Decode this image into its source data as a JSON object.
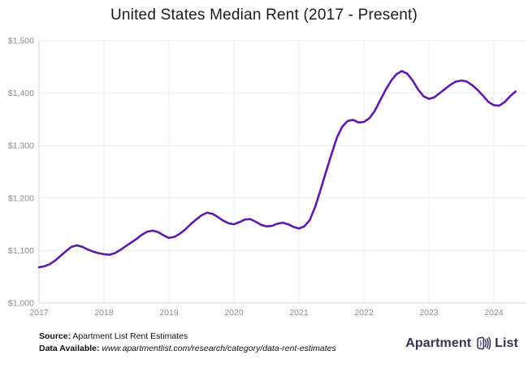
{
  "title": "United States Median Rent (2017 - Present)",
  "footer": {
    "source_label": "Source:",
    "source_text": " Apartment List Rent Estimates",
    "data_label": "Data Available:",
    "data_text": " www.apartmentlist.com/research/category/data-rent-estimates"
  },
  "logo": {
    "brand_first": "Apartment",
    "brand_second": "List",
    "icon": "apartment-list-door-icon"
  },
  "colors": {
    "line": "#5c1bab",
    "grid": "#ebebeb",
    "axis": "#d5d5d5",
    "tick_text": "#8c8c8c",
    "title_text": "#1b1b1b",
    "footer_text": "#111111",
    "logo_text": "#3a3153",
    "logo_purple": "#7b3ff2"
  },
  "chart_data": {
    "type": "line",
    "title": "United States Median Rent (2017 - Present)",
    "xlabel": "",
    "ylabel": "",
    "grid": true,
    "legend": false,
    "x_range": [
      2017,
      2024.5
    ],
    "y_range": [
      1000,
      1500
    ],
    "x_ticks": [
      {
        "v": 2017,
        "label": "2017"
      },
      {
        "v": 2018,
        "label": "2018"
      },
      {
        "v": 2019,
        "label": "2019"
      },
      {
        "v": 2020,
        "label": "2020"
      },
      {
        "v": 2021,
        "label": "2021"
      },
      {
        "v": 2022,
        "label": "2022"
      },
      {
        "v": 2023,
        "label": "2023"
      },
      {
        "v": 2024,
        "label": "2024"
      }
    ],
    "y_ticks": [
      {
        "v": 1000,
        "label": "$1,000"
      },
      {
        "v": 1100,
        "label": "$1,100"
      },
      {
        "v": 1200,
        "label": "$1,200"
      },
      {
        "v": 1300,
        "label": "$1,300"
      },
      {
        "v": 1400,
        "label": "$1,400"
      },
      {
        "v": 1500,
        "label": "$1,500"
      }
    ],
    "series": [
      {
        "name": "US Median Rent ($)",
        "x_start_year": 2017,
        "interval": "monthly",
        "values": [
          1068,
          1070,
          1074,
          1081,
          1090,
          1099,
          1107,
          1110,
          1107,
          1102,
          1098,
          1095,
          1093,
          1092,
          1095,
          1101,
          1108,
          1115,
          1122,
          1130,
          1136,
          1138,
          1135,
          1129,
          1124,
          1126,
          1132,
          1140,
          1150,
          1159,
          1167,
          1172,
          1170,
          1164,
          1157,
          1152,
          1150,
          1154,
          1159,
          1160,
          1155,
          1149,
          1146,
          1147,
          1151,
          1153,
          1150,
          1145,
          1142,
          1146,
          1158,
          1183,
          1216,
          1250,
          1283,
          1315,
          1336,
          1347,
          1349,
          1344,
          1345,
          1352,
          1366,
          1386,
          1406,
          1423,
          1436,
          1442,
          1437,
          1424,
          1407,
          1394,
          1389,
          1392,
          1400,
          1408,
          1416,
          1422,
          1424,
          1422,
          1415,
          1406,
          1395,
          1383,
          1377,
          1376,
          1383,
          1394,
          1403
        ]
      }
    ]
  }
}
